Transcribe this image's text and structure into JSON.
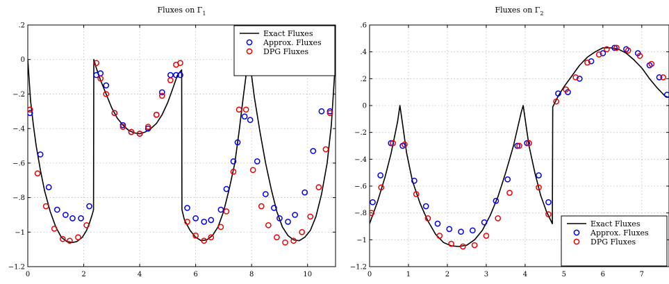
{
  "chart_data": [
    {
      "type": "line",
      "title": "Fluxes on Γ",
      "title_subscript": "1",
      "xlabel": "",
      "ylabel": "",
      "xlim": [
        0,
        11
      ],
      "ylim": [
        -1.2,
        0.2
      ],
      "xticks": [
        0,
        2,
        4,
        6,
        8,
        10
      ],
      "yticks": [
        0.2,
        0,
        -0.2,
        -0.4,
        -0.6,
        -0.8,
        -1,
        -1.2
      ],
      "grid": true,
      "legend_position": "top-right",
      "series": [
        {
          "name": "Exact Fluxes",
          "style": "line",
          "color": "#000000",
          "x": [
            0,
            0.1,
            0.2,
            0.3,
            0.45,
            0.6,
            0.8,
            1.0,
            1.2,
            1.4,
            1.6,
            1.75,
            1.95,
            2.1,
            2.2,
            2.3,
            2.35,
            2.36,
            2.45,
            2.6,
            2.8,
            3.0,
            3.2,
            3.4,
            3.6,
            3.8,
            4.0,
            4.2,
            4.4,
            4.6,
            4.8,
            5.0,
            5.2,
            5.35,
            5.45,
            5.5,
            5.51,
            5.6,
            5.8,
            6.0,
            6.2,
            6.4,
            6.6,
            6.8,
            7.0,
            7.2,
            7.4,
            7.55,
            7.7,
            7.85,
            7.9,
            7.95,
            8.1,
            8.3,
            8.5,
            8.7,
            8.9,
            9.1,
            9.3,
            9.5,
            9.7,
            9.9,
            10.1,
            10.3,
            10.5,
            10.7,
            10.85,
            11.0
          ],
          "y": [
            0,
            -0.24,
            -0.38,
            -0.5,
            -0.64,
            -0.76,
            -0.88,
            -0.97,
            -1.03,
            -1.055,
            -1.06,
            -1.055,
            -1.03,
            -0.99,
            -0.95,
            -0.9,
            -0.87,
            0,
            -0.05,
            -0.12,
            -0.2,
            -0.28,
            -0.34,
            -0.38,
            -0.41,
            -0.425,
            -0.43,
            -0.42,
            -0.4,
            -0.37,
            -0.32,
            -0.25,
            -0.16,
            -0.09,
            -0.07,
            -0.06,
            -0.87,
            -0.93,
            -0.99,
            -1.03,
            -1.05,
            -1.045,
            -1.02,
            -0.97,
            -0.88,
            -0.75,
            -0.6,
            -0.42,
            -0.22,
            -0.03,
            0,
            -0.03,
            -0.22,
            -0.42,
            -0.6,
            -0.75,
            -0.88,
            -0.97,
            -1.02,
            -1.045,
            -1.05,
            -1.03,
            -0.99,
            -0.91,
            -0.78,
            -0.6,
            -0.38,
            0
          ]
        },
        {
          "name": "Approx. Fluxes",
          "style": "markers",
          "color": "#0000ee",
          "x": [
            0.08,
            0.45,
            0.75,
            1.05,
            1.35,
            1.6,
            1.9,
            2.2,
            2.45,
            2.6,
            2.8,
            3.1,
            3.4,
            3.7,
            4.0,
            4.3,
            4.6,
            4.8,
            5.1,
            5.3,
            5.45,
            5.7,
            6.0,
            6.3,
            6.55,
            6.9,
            7.1,
            7.35,
            7.5,
            7.75,
            7.95,
            8.2,
            8.5,
            8.8,
            9.0,
            9.3,
            9.55,
            9.9,
            10.2,
            10.5,
            10.8
          ],
          "y": [
            -0.31,
            -0.55,
            -0.74,
            -0.87,
            -0.9,
            -0.92,
            -0.92,
            -0.85,
            -0.09,
            -0.08,
            -0.15,
            -0.31,
            -0.38,
            -0.42,
            -0.43,
            -0.4,
            -0.32,
            -0.19,
            -0.09,
            -0.09,
            -0.09,
            -0.86,
            -0.92,
            -0.94,
            -0.93,
            -0.87,
            -0.75,
            -0.59,
            -0.48,
            -0.33,
            -0.35,
            -0.59,
            -0.78,
            -0.86,
            -0.92,
            -0.94,
            -0.9,
            -0.77,
            -0.53,
            -0.3,
            -0.3
          ]
        },
        {
          "name": "DPG Fluxes",
          "style": "markers",
          "color": "#ee0000",
          "x": [
            0.08,
            0.35,
            0.65,
            0.95,
            1.25,
            1.5,
            1.8,
            2.1,
            2.45,
            2.6,
            2.8,
            3.1,
            3.4,
            3.7,
            4.0,
            4.3,
            4.6,
            4.8,
            5.1,
            5.3,
            5.45,
            5.7,
            6.0,
            6.3,
            6.55,
            6.9,
            7.1,
            7.35,
            7.55,
            7.8,
            8.05,
            8.35,
            8.6,
            8.9,
            9.2,
            9.5,
            9.8,
            10.1,
            10.4,
            10.65,
            10.8
          ],
          "y": [
            -0.29,
            -0.66,
            -0.85,
            -0.98,
            -1.04,
            -1.05,
            -1.03,
            -0.96,
            -0.02,
            -0.11,
            -0.2,
            -0.31,
            -0.39,
            -0.42,
            -0.43,
            -0.39,
            -0.32,
            -0.21,
            -0.12,
            -0.03,
            -0.02,
            -0.94,
            -1.02,
            -1.05,
            -1.03,
            -0.97,
            -0.88,
            -0.65,
            -0.29,
            -0.29,
            -0.64,
            -0.85,
            -0.96,
            -1.03,
            -1.06,
            -1.05,
            -1.0,
            -0.91,
            -0.74,
            -0.52,
            -0.31
          ]
        }
      ]
    },
    {
      "type": "line",
      "title": "Fluxes on Γ",
      "title_subscript": "2",
      "xlabel": "",
      "ylabel": "",
      "xlim": [
        0,
        7.7
      ],
      "ylim": [
        -1.2,
        0.6
      ],
      "xticks": [
        0,
        1,
        2,
        3,
        4,
        5,
        6,
        7
      ],
      "yticks": [
        0.6,
        0.4,
        0.2,
        0,
        -0.2,
        -0.4,
        -0.6,
        -0.8,
        -1,
        -1.2
      ],
      "grid": true,
      "legend_position": "bottom-right",
      "series": [
        {
          "name": "Exact Fluxes",
          "style": "line",
          "color": "#000000",
          "x": [
            0,
            0.2,
            0.4,
            0.55,
            0.65,
            0.72,
            0.78,
            0.84,
            0.95,
            1.1,
            1.3,
            1.5,
            1.7,
            1.9,
            2.1,
            2.3,
            2.5,
            2.7,
            2.9,
            3.1,
            3.3,
            3.5,
            3.7,
            3.82,
            3.9,
            3.95,
            4.0,
            4.1,
            4.25,
            4.4,
            4.55,
            4.7,
            4.71,
            4.85,
            5.0,
            5.2,
            5.4,
            5.6,
            5.8,
            6.0,
            6.2,
            6.4,
            6.6,
            6.8,
            7.0,
            7.2,
            7.4,
            7.6,
            7.7
          ],
          "y": [
            -0.88,
            -0.72,
            -0.53,
            -0.36,
            -0.22,
            -0.12,
            0,
            -0.12,
            -0.35,
            -0.56,
            -0.73,
            -0.86,
            -0.96,
            -1.02,
            -1.045,
            -1.05,
            -1.04,
            -1.0,
            -0.93,
            -0.82,
            -0.68,
            -0.5,
            -0.3,
            -0.15,
            -0.05,
            0,
            -0.1,
            -0.3,
            -0.5,
            -0.67,
            -0.79,
            -0.88,
            -0.01,
            0.07,
            0.14,
            0.22,
            0.3,
            0.36,
            0.4,
            0.43,
            0.43,
            0.42,
            0.39,
            0.34,
            0.28,
            0.2,
            0.13,
            0.07,
            0.06
          ]
        },
        {
          "name": "Approx. Fluxes",
          "style": "markers",
          "color": "#0000ee",
          "x": [
            0.08,
            0.28,
            0.55,
            0.85,
            1.15,
            1.45,
            1.75,
            2.05,
            2.35,
            2.65,
            2.95,
            3.25,
            3.55,
            3.8,
            4.05,
            4.35,
            4.6,
            4.85,
            5.1,
            5.4,
            5.7,
            6.0,
            6.3,
            6.6,
            6.9,
            7.2,
            7.45,
            7.65
          ],
          "y": [
            -0.72,
            -0.52,
            -0.28,
            -0.3,
            -0.56,
            -0.75,
            -0.88,
            -0.92,
            -0.94,
            -0.93,
            -0.87,
            -0.71,
            -0.55,
            -0.3,
            -0.28,
            -0.52,
            -0.72,
            0.09,
            0.1,
            0.2,
            0.33,
            0.39,
            0.43,
            0.42,
            0.39,
            0.3,
            0.21,
            0.08
          ]
        },
        {
          "name": "DPG Fluxes",
          "style": "markers",
          "color": "#ee0000",
          "x": [
            0.05,
            0.3,
            0.6,
            0.9,
            1.2,
            1.5,
            1.8,
            2.1,
            2.4,
            2.7,
            3.0,
            3.3,
            3.6,
            3.85,
            4.1,
            4.35,
            4.6,
            4.8,
            5.05,
            5.3,
            5.6,
            5.9,
            6.1,
            6.35,
            6.65,
            6.95,
            7.25,
            7.55
          ],
          "y": [
            -0.8,
            -0.61,
            -0.28,
            -0.29,
            -0.66,
            -0.84,
            -0.97,
            -1.03,
            -1.05,
            -1.04,
            -0.97,
            -0.84,
            -0.65,
            -0.3,
            -0.28,
            -0.61,
            -0.81,
            0.03,
            0.12,
            0.21,
            0.32,
            0.38,
            0.42,
            0.43,
            0.41,
            0.37,
            0.31,
            0.21
          ]
        }
      ]
    }
  ]
}
